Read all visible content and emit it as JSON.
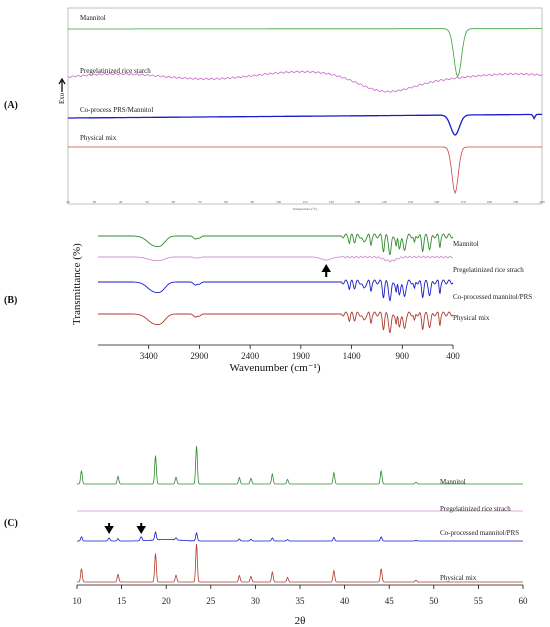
{
  "panel_labels": {
    "A": "(A)",
    "B": "(B)",
    "C": "(C)"
  },
  "chart_data": [
    {
      "type": "line",
      "panel": "(A)",
      "ylabel": "Exo",
      "xlabel": "Temperature (°C)",
      "xlim": [
        20,
        200
      ],
      "x_ticks": [
        "20",
        "30",
        "40",
        "50",
        "60",
        "70",
        "80",
        "90",
        "100",
        "110",
        "120",
        "130",
        "140",
        "150",
        "160",
        "170",
        "180",
        "190",
        "200"
      ],
      "series": [
        {
          "name": "Mannitol",
          "color": "#3aa33a",
          "peak_x": 168
        },
        {
          "name": "Pregelatinized rice starch",
          "color": "#cc66cc",
          "broad_dip_x": 140
        },
        {
          "name": "Co-process PRS/Mannitol",
          "color": "#1a1acc",
          "peak_x": 167,
          "minor_peak_x": 197
        },
        {
          "name": "Physical mix",
          "color": "#cc4444",
          "peak_x": 167
        }
      ]
    },
    {
      "type": "line",
      "panel": "(B)",
      "ylabel": "Transmittance (%)",
      "xlabel": "Wavenumber (cm⁻¹)",
      "xlim": [
        3900,
        400
      ],
      "x_ticks": [
        "3400",
        "2900",
        "2400",
        "1900",
        "1400",
        "900",
        "400"
      ],
      "x_tick_values": [
        3400,
        2900,
        2400,
        1900,
        1400,
        900,
        400
      ],
      "arrow_at": 1650,
      "series": [
        {
          "name": "Mannitol",
          "color": "#2e8b2e"
        },
        {
          "name": "Pregelatinized rice strach",
          "color": "#d38fd3"
        },
        {
          "name": "Co-processed mannitol/PRS",
          "color": "#1a1acc"
        },
        {
          "name": "Physical mix",
          "color": "#b03a2e"
        }
      ]
    },
    {
      "type": "line",
      "panel": "(C)",
      "xlabel": "2θ",
      "xlim": [
        10,
        60
      ],
      "x_ticks": [
        "10",
        "15",
        "20",
        "25",
        "30",
        "35",
        "40",
        "45",
        "50",
        "55",
        "60"
      ],
      "x_tick_values": [
        10,
        15,
        20,
        25,
        30,
        35,
        40,
        45,
        50,
        55,
        60
      ],
      "arrows_at": [
        13.6,
        17.2
      ],
      "peaks": [
        {
          "x": 10.5,
          "h": 0.35
        },
        {
          "x": 14.6,
          "h": 0.2
        },
        {
          "x": 18.8,
          "h": 0.75
        },
        {
          "x": 21.1,
          "h": 0.18
        },
        {
          "x": 23.4,
          "h": 1.0
        },
        {
          "x": 28.2,
          "h": 0.17
        },
        {
          "x": 29.5,
          "h": 0.15
        },
        {
          "x": 31.9,
          "h": 0.26
        },
        {
          "x": 33.6,
          "h": 0.12
        },
        {
          "x": 38.8,
          "h": 0.3
        },
        {
          "x": 44.1,
          "h": 0.35
        },
        {
          "x": 48.0,
          "h": 0.05
        }
      ],
      "series": [
        {
          "name": "Mannitol",
          "color": "#2e8b2e"
        },
        {
          "name": "Pregelatinized rice strach",
          "color": "#d38fd3"
        },
        {
          "name": "Co-processed mannitol/PRS",
          "color": "#1a1acc"
        },
        {
          "name": "Physical mix",
          "color": "#b03a2e"
        }
      ]
    }
  ]
}
